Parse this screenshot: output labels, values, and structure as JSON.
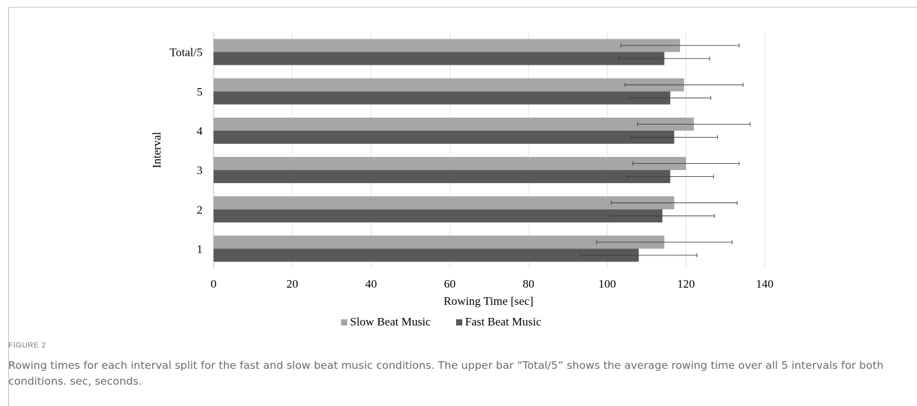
{
  "chart_data": {
    "type": "bar",
    "orientation": "horizontal",
    "categories": [
      "Total/5",
      "5",
      "4",
      "3",
      "2",
      "1"
    ],
    "series": [
      {
        "name": "Slow Beat Music",
        "color": "#a6a6a6",
        "values": [
          118.5,
          119.5,
          122,
          120,
          117,
          114.5
        ],
        "errors": [
          15,
          15,
          14.3,
          13.5,
          16,
          17.2
        ]
      },
      {
        "name": "Fast Beat Music",
        "color": "#595959",
        "values": [
          114.5,
          116,
          117,
          116,
          114,
          108
        ],
        "errors": [
          11.5,
          10.3,
          11,
          11,
          13.2,
          14.8
        ]
      }
    ],
    "xlabel": "Rowing Time [sec]",
    "ylabel": "Interval",
    "xlim": [
      0,
      140
    ],
    "xticks": [
      "0",
      "20",
      "40",
      "60",
      "80",
      "100",
      "120",
      "140"
    ],
    "grid": "vertical",
    "legend_position": "bottom"
  },
  "caption": {
    "label": "FIGURE 2",
    "text": "Rowing times for each interval split for the fast and slow beat music conditions. The upper bar “Total/5” shows the average rowing time over all 5 intervals for both conditions. sec, seconds."
  }
}
